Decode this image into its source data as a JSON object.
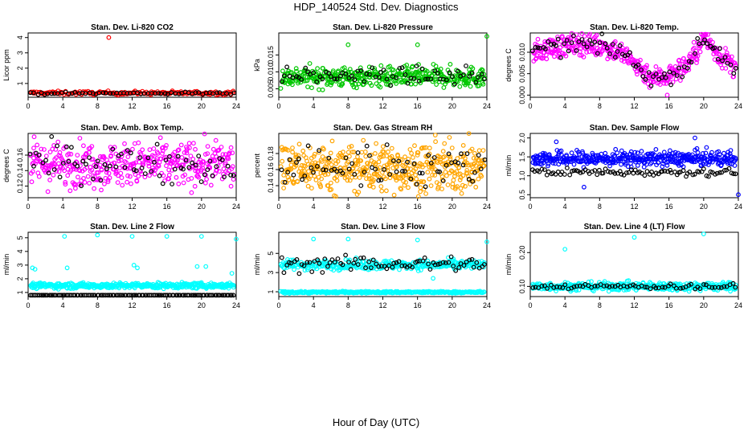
{
  "title": "HDP_140524  Std. Dev. Diagnostics",
  "xlabel": "Hour of Day (UTC)",
  "chart_data": [
    {
      "type": "scatter",
      "title": "Stan. Dev. Li-820 CO2",
      "ylabel": "Licor ppm",
      "xlim": [
        0,
        24
      ],
      "xticks": [
        0,
        4,
        8,
        12,
        16,
        20,
        24
      ],
      "ylim": [
        0.1,
        4.3
      ],
      "yticks": [
        1,
        2,
        3,
        4
      ],
      "yticklabels": [
        "1",
        "2",
        "3",
        "4"
      ],
      "series": [
        {
          "color": "#ff0000",
          "base": 0.38,
          "spread": 0.06,
          "count": 170,
          "x": [
            9.3
          ],
          "y": [
            4.0
          ]
        },
        {
          "color": "#000000",
          "base": 0.36,
          "spread": 0.04,
          "count": 60
        }
      ]
    },
    {
      "type": "scatter",
      "title": "Stan. Dev. Li-820 Pressure",
      "ylabel": "kPa",
      "xlim": [
        0,
        24
      ],
      "xticks": [
        0,
        4,
        8,
        12,
        16,
        20,
        24
      ],
      "ylim": [
        0.0025,
        0.0215
      ],
      "yticks": [
        0.005,
        0.01,
        0.015
      ],
      "yticklabels": [
        "0.005",
        "0.010",
        "0.015"
      ],
      "series": [
        {
          "color": "#00c800",
          "base": 0.0085,
          "spread": 0.0015,
          "count": 420,
          "x": [
            8.0,
            16.0,
            24.0
          ],
          "y": [
            0.018,
            0.018,
            0.0205
          ]
        },
        {
          "color": "#000000",
          "base": 0.0088,
          "spread": 0.0012,
          "count": 70
        }
      ]
    },
    {
      "type": "scatter",
      "title": "Stan. Dev. Li-820 Temp.",
      "ylabel": "degrees C",
      "xlim": [
        0,
        24
      ],
      "xticks": [
        0,
        4,
        8,
        12,
        16,
        20,
        24
      ],
      "ylim": [
        -0.0005,
        0.0145
      ],
      "yticks": [
        0.0,
        0.005,
        0.01
      ],
      "yticklabels": [
        "0.000",
        "0.005",
        "0.010"
      ],
      "curve_x": [
        0,
        2,
        4,
        6,
        8,
        10,
        12,
        14,
        16,
        18,
        19.5,
        20,
        22,
        24
      ],
      "curve_y": [
        0.0095,
        0.011,
        0.0115,
        0.012,
        0.0115,
        0.0105,
        0.0075,
        0.004,
        0.0045,
        0.007,
        0.011,
        0.0135,
        0.009,
        0.006
      ],
      "series": [
        {
          "color": "#ff00ff",
          "spread": 0.0013,
          "count": 420,
          "x": [
            15.8
          ],
          "y": [
            0.0
          ]
        },
        {
          "color": "#000000",
          "spread": 0.001,
          "count": 80
        }
      ]
    },
    {
      "type": "scatter",
      "title": "Stan. Dev. Amb. Box Temp.",
      "ylabel": "degrees C",
      "xlim": [
        0,
        24
      ],
      "xticks": [
        0,
        4,
        8,
        12,
        16,
        20,
        24
      ],
      "ylim": [
        0.105,
        0.188
      ],
      "yticks": [
        0.12,
        0.14,
        0.16
      ],
      "yticklabels": [
        "0.12",
        "0.14",
        "0.16"
      ],
      "series": [
        {
          "color": "#ff00ff",
          "base": 0.148,
          "spread": 0.014,
          "count": 420
        },
        {
          "color": "#000000",
          "base": 0.15,
          "spread": 0.012,
          "count": 70
        }
      ]
    },
    {
      "type": "scatter",
      "title": "Stan. Dev. Gas Stream RH",
      "ylabel": "percent",
      "xlim": [
        0,
        24
      ],
      "xticks": [
        0,
        4,
        8,
        12,
        16,
        20,
        24
      ],
      "ylim": [
        0.125,
        0.205
      ],
      "yticks": [
        0.14,
        0.16,
        0.18
      ],
      "yticklabels": [
        "0.14",
        "0.16",
        "0.18"
      ],
      "series": [
        {
          "color": "#ffa500",
          "base": 0.162,
          "spread": 0.015,
          "count": 480
        },
        {
          "color": "#000000",
          "base": 0.165,
          "spread": 0.012,
          "count": 70
        }
      ]
    },
    {
      "type": "scatter",
      "title": "Stan. Dev. Sample Flow",
      "ylabel": "ml/min",
      "xlim": [
        0,
        24
      ],
      "xticks": [
        0,
        4,
        8,
        12,
        16,
        20,
        24
      ],
      "ylim": [
        0.42,
        2.12
      ],
      "yticks": [
        0.5,
        1.0,
        1.5,
        2.0
      ],
      "yticklabels": [
        "0.5",
        "1.0",
        "1.5",
        "2.0"
      ],
      "series": [
        {
          "color": "#0000ff",
          "base": 1.45,
          "spread": 0.1,
          "count": 420,
          "x": [
            24.0,
            19.0,
            6.2,
            3.0
          ],
          "y": [
            0.5,
            2.0,
            0.7,
            1.9
          ]
        },
        {
          "color": "#000000",
          "base": 1.1,
          "spread": 0.05,
          "count": 90
        }
      ]
    },
    {
      "type": "scatter",
      "title": "Stan. Dev. Line 2 Flow",
      "ylabel": "ml/min",
      "xlim": [
        0,
        24
      ],
      "xticks": [
        0,
        4,
        8,
        12,
        16,
        20,
        24
      ],
      "ylim": [
        0.7,
        5.4
      ],
      "yticks": [
        1,
        2,
        3,
        4,
        5
      ],
      "yticklabels": [
        "1",
        "2",
        "3",
        "4",
        "5"
      ],
      "series": [
        {
          "color": "#00ffff",
          "base": 1.5,
          "spread": 0.1,
          "count": 420,
          "x": [
            4.2,
            8.0,
            12.0,
            16.0,
            20.0,
            24.0,
            0.5,
            0.8,
            4.5,
            12.2,
            12.6,
            19.5,
            20.5,
            23.5
          ],
          "y": [
            5.1,
            5.2,
            5.1,
            5.1,
            5.1,
            4.9,
            2.8,
            2.7,
            2.8,
            3.0,
            2.8,
            2.9,
            2.9,
            2.4
          ]
        },
        {
          "color": "#000000",
          "base": 0.8,
          "spread": 0.0,
          "count": 120
        }
      ]
    },
    {
      "type": "scatter",
      "title": "Stan. Dev. Line 3 Flow",
      "ylabel": "ml/min",
      "xlim": [
        0,
        24
      ],
      "xticks": [
        0,
        4,
        8,
        12,
        16,
        20,
        24
      ],
      "ylim": [
        0.5,
        7.2
      ],
      "yticks": [
        1,
        3,
        5
      ],
      "yticklabels": [
        "1",
        "3",
        "5"
      ],
      "series": [
        {
          "color": "#00ffff",
          "base": 3.8,
          "spread": 0.25,
          "count": 330,
          "x": [
            4.0,
            8.0,
            16.0,
            24.0,
            17.8
          ],
          "y": [
            6.5,
            6.5,
            6.4,
            6.2,
            2.4
          ]
        },
        {
          "color": "#00ffff",
          "base": 0.95,
          "spread": 0.05,
          "count": 330
        },
        {
          "color": "#000000",
          "base": 3.9,
          "spread": 0.4,
          "count": 80
        }
      ]
    },
    {
      "type": "scatter",
      "title": "Stan. Dev. Line 4 (LT) Flow",
      "ylabel": "ml/min",
      "xlim": [
        0,
        24
      ],
      "xticks": [
        0,
        4,
        8,
        12,
        16,
        20,
        24
      ],
      "ylim": [
        0.07,
        0.26
      ],
      "yticks": [
        0.1,
        0.2
      ],
      "yticklabels": [
        "0.10",
        "0.20"
      ],
      "series": [
        {
          "color": "#00ffff",
          "base": 0.1,
          "spread": 0.006,
          "count": 420,
          "x": [
            4.0,
            12.0,
            20.0
          ],
          "y": [
            0.21,
            0.245,
            0.255
          ]
        },
        {
          "color": "#000000",
          "base": 0.1,
          "spread": 0.004,
          "count": 70
        }
      ]
    }
  ]
}
